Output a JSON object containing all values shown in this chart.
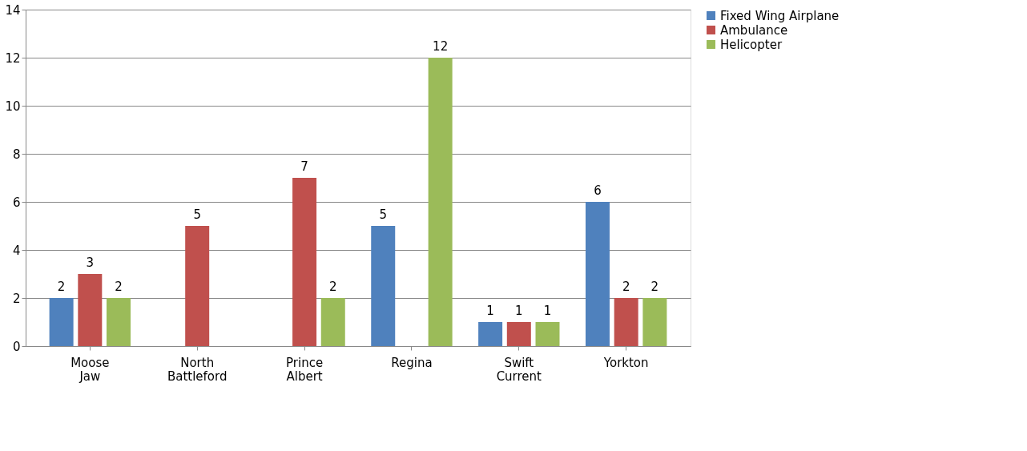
{
  "chart_data": {
    "type": "bar",
    "categories": [
      "Moose Jaw",
      "North Battleford",
      "Prince Albert",
      "Regina",
      "Swift Current",
      "Yorkton"
    ],
    "series": [
      {
        "name": "Fixed Wing Airplane",
        "color": "#4f81bd",
        "values": [
          2,
          null,
          null,
          5,
          1,
          6
        ]
      },
      {
        "name": "Ambulance",
        "color": "#c0504d",
        "values": [
          3,
          5,
          7,
          null,
          1,
          2
        ]
      },
      {
        "name": "Helicopter",
        "color": "#9bbb59",
        "values": [
          2,
          null,
          2,
          12,
          1,
          2
        ]
      }
    ],
    "ylim": [
      0,
      14
    ],
    "yticks": [
      0,
      2,
      4,
      6,
      8,
      10,
      12,
      14
    ],
    "grid": "y",
    "legend": "right",
    "data_labels": true
  }
}
